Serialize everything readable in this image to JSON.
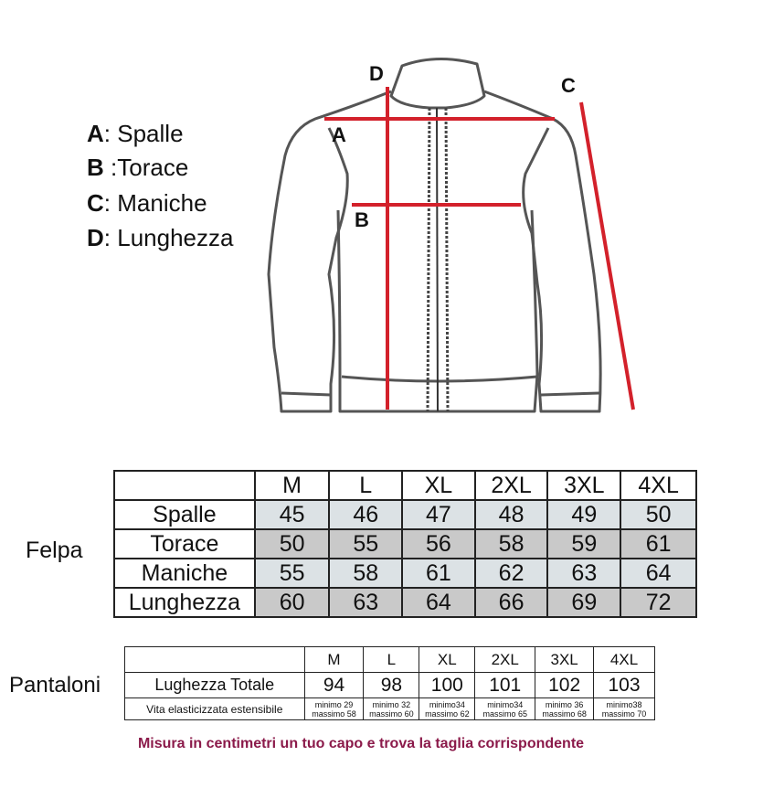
{
  "legend": [
    {
      "key": "A",
      "sep": ":",
      "label": "Spalle"
    },
    {
      "key": "B",
      "sep": ":",
      "label": "Torace"
    },
    {
      "key": "C",
      "sep": ":",
      "label": "Maniche"
    },
    {
      "key": "D",
      "sep": ":",
      "label": "Lunghezza"
    }
  ],
  "diagram": {
    "labels": {
      "a": "A",
      "b": "B",
      "c": "C",
      "d": "D"
    },
    "line_color": "#d3212b"
  },
  "felpa": {
    "title": "Felpa",
    "sizes": [
      "M",
      "L",
      "XL",
      "2XL",
      "3XL",
      "4XL"
    ],
    "rows": [
      {
        "label": "Spalle",
        "values": [
          "45",
          "46",
          "47",
          "48",
          "49",
          "50"
        ]
      },
      {
        "label": "Torace",
        "values": [
          "50",
          "55",
          "56",
          "58",
          "59",
          "61"
        ]
      },
      {
        "label": "Maniche",
        "values": [
          "55",
          "58",
          "61",
          "62",
          "63",
          "64"
        ]
      },
      {
        "label": "Lunghezza",
        "values": [
          "60",
          "63",
          "64",
          "66",
          "69",
          "72"
        ]
      }
    ]
  },
  "pantaloni": {
    "title": "Pantaloni",
    "sizes": [
      "M",
      "L",
      "XL",
      "2XL",
      "3XL",
      "4XL"
    ],
    "length_row": {
      "label": "Lughezza Totale",
      "values": [
        "94",
        "98",
        "100",
        "101",
        "102",
        "103"
      ]
    },
    "waist_row": {
      "label": "Vita elasticizzata estensibile",
      "cells": [
        {
          "min": "minimo 29",
          "max": "massimo 58"
        },
        {
          "min": "minimo 32",
          "max": "massimo 60"
        },
        {
          "min": "minimo34",
          "max": "massimo 62"
        },
        {
          "min": "minimo34",
          "max": "massimo 65"
        },
        {
          "min": "minimo 36",
          "max": "massimo 68"
        },
        {
          "min": "minimo38",
          "max": "massimo 70"
        }
      ]
    }
  },
  "footer": {
    "text": "Misura in centimetri un tuo capo e trova la taglia corrispondente",
    "color": "#8b1a4a"
  }
}
